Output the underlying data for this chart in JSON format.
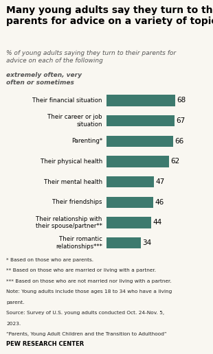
{
  "title": "Many young adults say they turn to their\nparents for advice on a variety of topics",
  "subtitle_italic": "% of young adults saying they turn to their parents for\nadvice on each of the following ",
  "subtitle_bold_italic": "extremely often, very\noften or sometimes",
  "categories": [
    "Their financial situation",
    "Their career or job\nsituation",
    "Parenting*",
    "Their physical health",
    "Their mental health",
    "Their friendships",
    "Their relationship with\ntheir spouse/partner**",
    "Their romantic\nrelationships***"
  ],
  "values": [
    68,
    67,
    66,
    62,
    47,
    46,
    44,
    34
  ],
  "bar_color": "#3d7a6e",
  "footnote_lines": [
    "* Based on those who are parents.",
    "** Based on those who are married or living with a partner.",
    "*** Based on those who are not married nor living with a partner.",
    "Note: Young adults include those ages 18 to 34 who have a living",
    "parent.",
    "Source: Survey of U.S. young adults conducted Oct. 24-Nov. 5,",
    "2023.",
    "“Parents, Young Adult Children and the Transition to Adulthood”"
  ],
  "source_label": "PEW RESEARCH CENTER",
  "xlim": [
    0,
    80
  ],
  "bg_color": "#f9f7f1"
}
